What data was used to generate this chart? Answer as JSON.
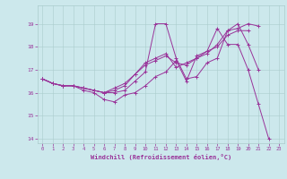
{
  "xlabel": "Windchill (Refroidissement éolien,°C)",
  "background_color": "#cce8ec",
  "line_color": "#993399",
  "xlim": [
    -0.5,
    23.5
  ],
  "ylim": [
    13.8,
    19.8
  ],
  "xticks": [
    0,
    1,
    2,
    3,
    4,
    5,
    6,
    7,
    8,
    9,
    10,
    11,
    12,
    13,
    14,
    15,
    16,
    17,
    18,
    19,
    20,
    21,
    22,
    23
  ],
  "yticks": [
    14,
    15,
    16,
    17,
    18,
    19
  ],
  "series": [
    {
      "x": [
        0,
        1,
        2,
        3,
        4,
        5,
        6,
        7,
        8,
        9,
        10,
        11,
        12,
        13,
        14,
        15,
        16,
        17,
        18,
        19,
        20,
        21,
        22
      ],
      "y": [
        16.6,
        16.4,
        16.3,
        16.3,
        16.1,
        16.0,
        15.7,
        15.6,
        15.9,
        16.0,
        16.3,
        16.7,
        16.9,
        17.4,
        16.5,
        17.6,
        17.8,
        18.8,
        18.1,
        18.1,
        17.0,
        15.5,
        14.0
      ]
    },
    {
      "x": [
        0,
        1,
        2,
        3,
        4,
        5,
        6,
        7,
        8,
        9,
        10,
        11,
        12,
        13,
        14,
        15,
        16,
        17,
        18,
        19,
        20,
        21
      ],
      "y": [
        16.6,
        16.4,
        16.3,
        16.3,
        16.2,
        16.1,
        16.0,
        16.0,
        16.1,
        16.5,
        16.9,
        19.0,
        19.0,
        17.5,
        16.6,
        16.7,
        17.3,
        17.5,
        18.7,
        19.0,
        18.1,
        17.0
      ]
    },
    {
      "x": [
        0,
        1,
        2,
        3,
        4,
        5,
        6,
        7,
        8,
        9,
        10,
        11,
        12,
        13,
        14,
        15,
        16,
        17,
        18,
        19,
        20
      ],
      "y": [
        16.6,
        16.4,
        16.3,
        16.3,
        16.2,
        16.1,
        16.0,
        16.2,
        16.4,
        16.8,
        17.3,
        17.5,
        17.7,
        17.1,
        17.3,
        17.5,
        17.8,
        18.0,
        18.5,
        18.7,
        18.7
      ]
    },
    {
      "x": [
        0,
        1,
        2,
        3,
        4,
        5,
        6,
        7,
        8,
        9,
        10,
        11,
        12,
        13,
        14,
        15,
        16,
        17,
        18,
        19,
        20,
        21
      ],
      "y": [
        16.6,
        16.4,
        16.3,
        16.3,
        16.2,
        16.1,
        16.0,
        16.1,
        16.3,
        16.8,
        17.2,
        17.4,
        17.6,
        17.3,
        17.2,
        17.5,
        17.7,
        18.1,
        18.7,
        18.8,
        19.0,
        18.9
      ]
    }
  ]
}
